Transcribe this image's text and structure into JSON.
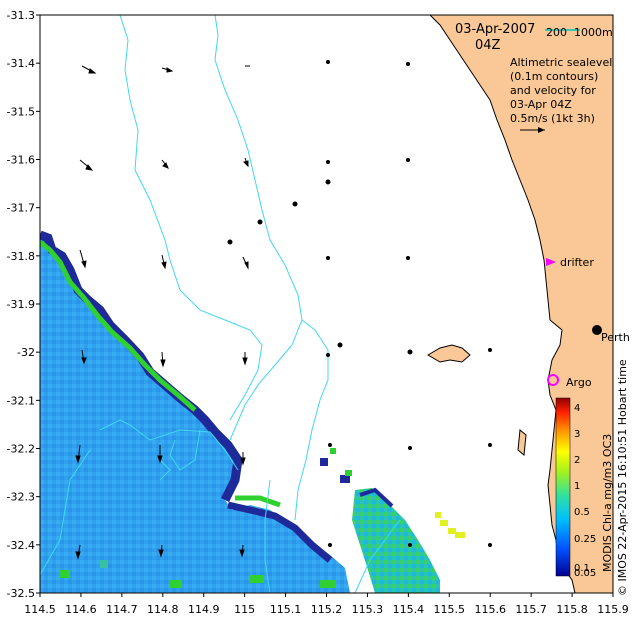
{
  "title": {
    "date": "03-Apr-2007",
    "time": "04Z"
  },
  "scale_bar": {
    "small": "200",
    "large": "1000m",
    "color": "#3fc8b0"
  },
  "description": {
    "line1": "Altimetric sealevel",
    "line2": "(0.1m contours)",
    "line3": "and velocity for",
    "line4": "03-Apr 04Z",
    "velocity_scale": "0.5m/s (1kt 3h)"
  },
  "places": {
    "drifter": "drifter",
    "perth": "Perth",
    "argo": "Argo"
  },
  "colorbar": {
    "label": "MODIS Chl-a mg/m3 OC3",
    "ticks": [
      "4",
      "3",
      "2",
      "1",
      "0.5",
      "0.25",
      "0.1",
      "0.05"
    ],
    "marker_colors": {
      "drifter": "#ff00ff",
      "argo": "#ff00ff"
    }
  },
  "credit": "© IMOS 22-Apr-2015 16:10:51 Hobart time",
  "axes": {
    "x_ticks": [
      "114.5",
      "114.6",
      "114.7",
      "114.8",
      "114.9",
      "115",
      "115.1",
      "115.2",
      "115.3",
      "115.4",
      "115.5",
      "115.6",
      "115.7",
      "115.8",
      "115.9"
    ],
    "y_ticks": [
      "-31.3",
      "-31.4",
      "-31.5",
      "-31.6",
      "-31.7",
      "-31.8",
      "-31.9",
      "-32",
      "-32.1",
      "-32.2",
      "-32.3",
      "-32.4",
      "-32.5"
    ]
  },
  "colors": {
    "land": "#fac896",
    "contour": "#40d8f0",
    "chl_low": "#2f9bf0",
    "chl_mid": "#12c8e0",
    "chl_green": "#30d030",
    "chl_high": "#0a1c80"
  }
}
